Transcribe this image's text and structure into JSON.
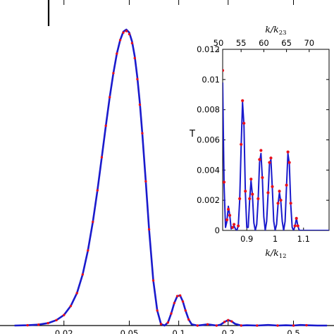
{
  "chart_data": [
    {
      "type": "line",
      "title": "",
      "xlabel": "",
      "ylabel": "",
      "x_scale": "log",
      "xlim": [
        0.008,
        0.9
      ],
      "ylim": [
        0,
        1
      ],
      "grid": false,
      "x_tick_labels": [
        "0.02",
        "0.05",
        "0.1",
        "0.2",
        "0.5"
      ],
      "x_tick_values": [
        0.02,
        0.05,
        0.1,
        0.2,
        0.5
      ],
      "colors": {
        "curve": "#1a1acc",
        "dots": "#e8101c"
      },
      "series": [
        {
          "style": "solid-line",
          "x": [
            0.01,
            0.012,
            0.014,
            0.016,
            0.018,
            0.02,
            0.022,
            0.024,
            0.026,
            0.028,
            0.03,
            0.032,
            0.034,
            0.036,
            0.038,
            0.04,
            0.042,
            0.044,
            0.046,
            0.048,
            0.05,
            0.052,
            0.054,
            0.056,
            0.058,
            0.06,
            0.063,
            0.066,
            0.07,
            0.074,
            0.078,
            0.082,
            0.086,
            0.09,
            0.094,
            0.098,
            0.102,
            0.106,
            0.11,
            0.115,
            0.12,
            0.13,
            0.14,
            0.15,
            0.16,
            0.17,
            0.18,
            0.19,
            0.2,
            0.21,
            0.22,
            0.24,
            0.26,
            0.3,
            0.35,
            0.4,
            0.45,
            0.5,
            0.55,
            0.6,
            0.7,
            0.8
          ],
          "y": [
            0.0,
            0.001,
            0.003,
            0.008,
            0.018,
            0.035,
            0.065,
            0.108,
            0.17,
            0.25,
            0.345,
            0.45,
            0.56,
            0.665,
            0.76,
            0.84,
            0.905,
            0.95,
            0.978,
            0.985,
            0.975,
            0.945,
            0.895,
            0.825,
            0.74,
            0.64,
            0.48,
            0.32,
            0.15,
            0.05,
            0.005,
            0.0,
            0.01,
            0.04,
            0.075,
            0.098,
            0.1,
            0.08,
            0.05,
            0.02,
            0.004,
            0.0,
            0.002,
            0.004,
            0.002,
            0.0,
            0.003,
            0.012,
            0.018,
            0.014,
            0.006,
            0.0,
            0.001,
            0.0,
            0.002,
            0.0,
            0.001,
            0.0,
            0.002,
            0.001,
            0.0,
            0.0
          ]
        },
        {
          "style": "dots",
          "x": [
            0.012,
            0.014,
            0.016,
            0.018,
            0.02,
            0.022,
            0.024,
            0.026,
            0.028,
            0.03,
            0.032,
            0.034,
            0.036,
            0.038,
            0.04,
            0.042,
            0.044,
            0.046,
            0.048,
            0.05,
            0.052,
            0.054,
            0.056,
            0.058,
            0.06,
            0.063,
            0.066,
            0.07,
            0.074,
            0.078,
            0.086,
            0.09,
            0.094,
            0.098,
            0.102,
            0.106,
            0.11,
            0.115,
            0.13,
            0.15,
            0.17,
            0.19,
            0.2,
            0.21,
            0.24,
            0.3,
            0.4,
            0.5,
            0.6
          ],
          "y": [
            0.001,
            0.003,
            0.008,
            0.018,
            0.035,
            0.065,
            0.108,
            0.17,
            0.25,
            0.345,
            0.45,
            0.56,
            0.665,
            0.76,
            0.84,
            0.905,
            0.95,
            0.975,
            0.98,
            0.97,
            0.94,
            0.89,
            0.82,
            0.735,
            0.64,
            0.48,
            0.32,
            0.15,
            0.05,
            0.005,
            0.01,
            0.04,
            0.075,
            0.098,
            0.1,
            0.08,
            0.05,
            0.02,
            0.0,
            0.004,
            0.0,
            0.012,
            0.018,
            0.014,
            0.0,
            0.0,
            0.0,
            0.0,
            0.001
          ]
        }
      ]
    },
    {
      "type": "line",
      "title": "",
      "ylabel": "T",
      "xlabel": "k/k",
      "xlabel_sub": "12",
      "x2label": "k/k",
      "x2label_sub": "23",
      "xlim": [
        0.815,
        1.19
      ],
      "ylim": [
        0,
        0.012
      ],
      "x_tick_values": [
        0.9,
        1.0,
        1.1
      ],
      "x_tick_labels": [
        "0.9",
        "1",
        "1.1"
      ],
      "y_tick_values": [
        0,
        0.002,
        0.004,
        0.006,
        0.008,
        0.01,
        0.012
      ],
      "y_tick_labels": [
        "0",
        "0.002",
        "0.004",
        "0.006",
        "0.008",
        "0.01",
        "0.012"
      ],
      "x2_tick_values": [
        50,
        55,
        60,
        65,
        70
      ],
      "x2_tick_labels": [
        "50",
        "55",
        "60",
        "65",
        "70"
      ],
      "x2_to_x_ratio": 0.016,
      "grid": false,
      "colors": {
        "curve": "#1a1acc",
        "dots": "#e8101c"
      },
      "series": [
        {
          "style": "solid-line",
          "x": [
            0.815,
            0.82,
            0.825,
            0.83,
            0.835,
            0.84,
            0.845,
            0.85,
            0.855,
            0.86,
            0.865,
            0.87,
            0.875,
            0.88,
            0.885,
            0.89,
            0.895,
            0.9,
            0.905,
            0.91,
            0.915,
            0.92,
            0.925,
            0.93,
            0.935,
            0.94,
            0.945,
            0.95,
            0.955,
            0.96,
            0.965,
            0.97,
            0.975,
            0.98,
            0.985,
            0.99,
            0.995,
            1.0,
            1.005,
            1.01,
            1.015,
            1.02,
            1.025,
            1.03,
            1.035,
            1.04,
            1.045,
            1.05,
            1.055,
            1.06,
            1.065,
            1.07,
            1.075,
            1.08,
            1.085,
            1.09,
            1.095,
            1.1,
            1.105,
            1.11,
            1.115,
            1.12,
            1.125,
            1.13,
            1.135,
            1.14,
            1.145,
            1.15,
            1.155,
            1.16,
            1.165,
            1.17,
            1.175,
            1.18,
            1.185,
            1.19
          ],
          "y": [
            0.0098,
            0.003,
            0.0002,
            0.0006,
            0.0016,
            0.001,
            0.0001,
            0.0002,
            0.0003,
            0.0001,
            0.0,
            0.0003,
            0.002,
            0.0055,
            0.0085,
            0.007,
            0.0025,
            0.0002,
            0.0002,
            0.002,
            0.0033,
            0.0023,
            0.0005,
            0.0,
            0.0004,
            0.002,
            0.0045,
            0.0051,
            0.0034,
            0.0009,
            0.0,
            0.0006,
            0.0024,
            0.0044,
            0.0047,
            0.0028,
            0.0006,
            0.0,
            0.0004,
            0.0017,
            0.0025,
            0.0019,
            0.0006,
            0.0,
            0.0006,
            0.0029,
            0.0051,
            0.0044,
            0.0017,
            0.0002,
            0.0,
            0.0003,
            0.0008,
            0.0003,
            0.0,
            0.0,
            0.0,
            0.0,
            0.0,
            0.0,
            0.0,
            0.0,
            0.0,
            0.0,
            0.0,
            0.0,
            0.0,
            0.0,
            0.0,
            0.0,
            0.0,
            0.0,
            0.0,
            0.0,
            0.0,
            0.0
          ]
        },
        {
          "style": "dots",
          "x": [
            0.815,
            0.82,
            0.83,
            0.835,
            0.84,
            0.85,
            0.855,
            0.87,
            0.875,
            0.88,
            0.885,
            0.89,
            0.895,
            0.91,
            0.915,
            0.92,
            0.94,
            0.945,
            0.95,
            0.955,
            0.975,
            0.98,
            0.985,
            0.99,
            1.01,
            1.015,
            1.02,
            1.04,
            1.045,
            1.05,
            1.055,
            1.07,
            1.075,
            1.08
          ],
          "y": [
            0.0106,
            0.0032,
            0.0007,
            0.0014,
            0.001,
            0.0002,
            0.0004,
            0.0003,
            0.0021,
            0.0057,
            0.0086,
            0.0071,
            0.0026,
            0.0021,
            0.0034,
            0.0024,
            0.0021,
            0.0047,
            0.0053,
            0.0035,
            0.0025,
            0.0045,
            0.0048,
            0.0029,
            0.0018,
            0.0026,
            0.002,
            0.003,
            0.0052,
            0.0045,
            0.0018,
            0.0003,
            0.0008,
            0.0003
          ]
        }
      ]
    }
  ]
}
